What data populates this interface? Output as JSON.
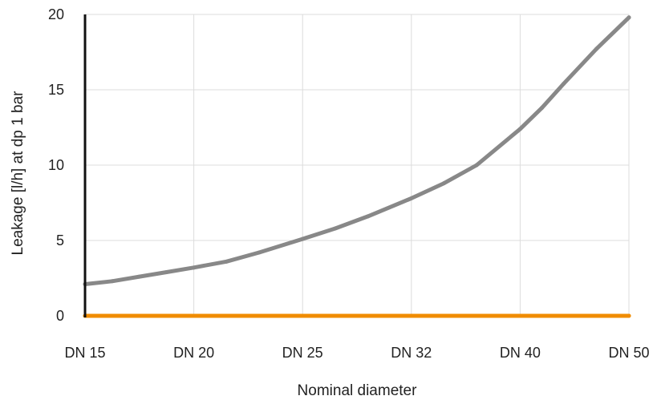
{
  "chart_data": {
    "type": "line",
    "categories": [
      "DN 15",
      "DN 20",
      "DN 25",
      "DN 32",
      "DN 40",
      "DN 50"
    ],
    "xlabel": "Nominal diameter",
    "ylabel": "Leakage [l/h] at dp 1 bar",
    "ylim": [
      0,
      20
    ],
    "yticks": [
      0,
      5,
      10,
      15,
      20
    ],
    "grid": true,
    "series": [
      {
        "color": "#888888",
        "x": [
          0,
          0.25,
          0.5,
          0.75,
          1,
          1.3,
          1.6,
          2,
          2.3,
          2.6,
          3,
          3.3,
          3.6,
          4,
          4.2,
          4.4,
          4.7,
          5
        ],
        "values": [
          2.1,
          2.3,
          2.6,
          2.9,
          3.2,
          3.6,
          4.2,
          5.1,
          5.8,
          6.6,
          7.8,
          8.8,
          10.0,
          12.4,
          13.8,
          15.4,
          17.7,
          19.8
        ]
      },
      {
        "color": "#F08C00",
        "x": [
          0,
          5
        ],
        "values": [
          0,
          0
        ]
      }
    ]
  }
}
